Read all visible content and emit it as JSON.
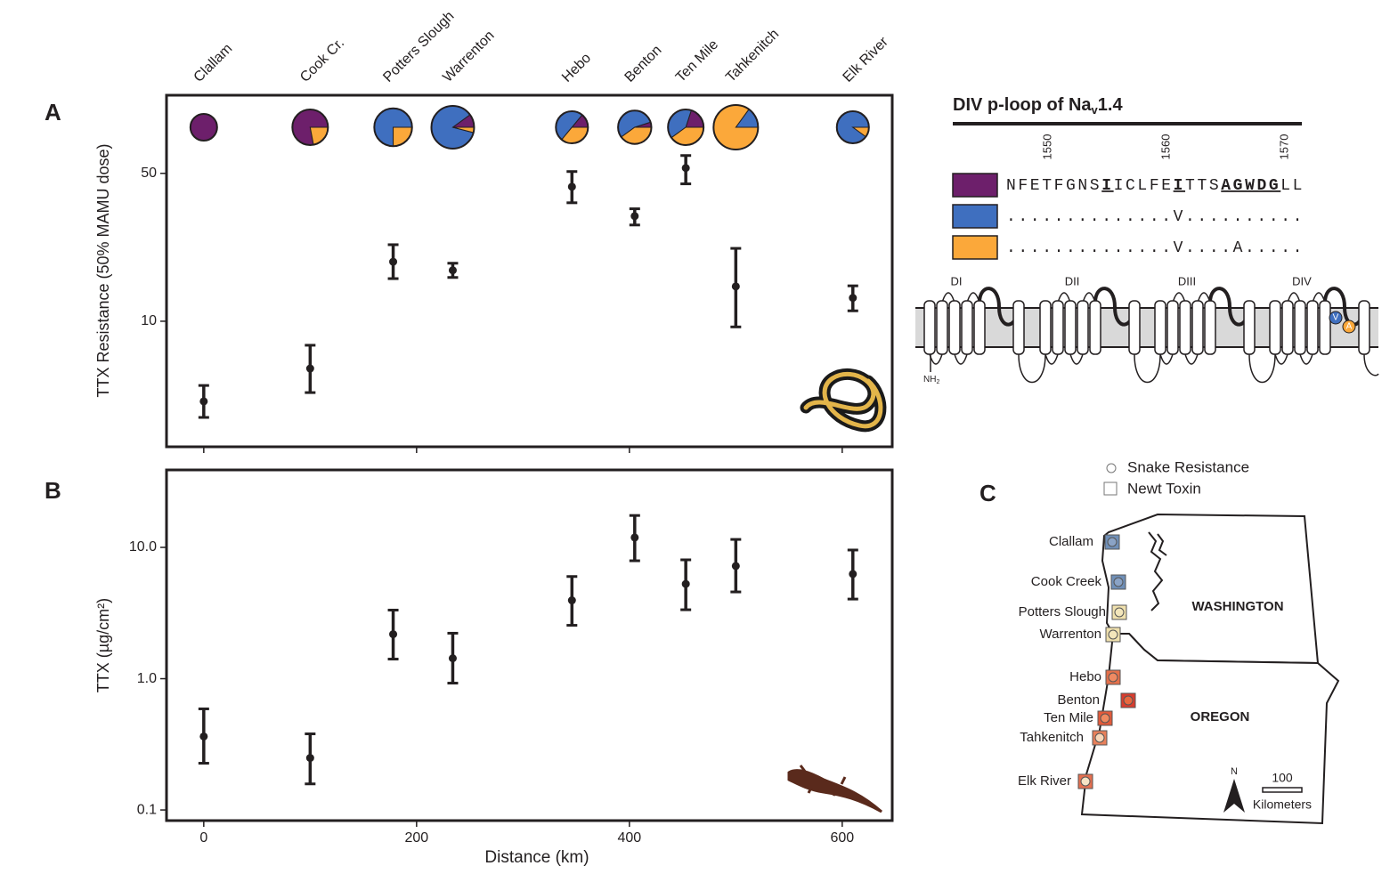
{
  "chart_data": [
    {
      "type": "errorbar",
      "panel": "A",
      "y_label": "TTX Resistance (50% MAMU dose)",
      "site_labels": [
        "Clallam",
        "Cook Cr.",
        "Potters Slough",
        "Warrenton",
        "Hebo",
        "Benton",
        "Ten Mile",
        "Tahkenitch",
        "Elk River"
      ],
      "x": [
        0,
        100,
        178,
        234,
        346,
        405,
        453,
        500,
        610
      ],
      "values": [
        4.18,
        5.98,
        19.1,
        17.4,
        43.2,
        31.4,
        53,
        14.6,
        12.9
      ],
      "lower": [
        3.51,
        4.6,
        15.9,
        16.1,
        36.3,
        28.5,
        44.6,
        9.4,
        11.2
      ],
      "upper": [
        4.97,
        7.7,
        23.0,
        18.8,
        51,
        34.0,
        60.7,
        22.1,
        14.7
      ],
      "xlim": [
        -35,
        647
      ],
      "ylim": [
        2.55,
        117
      ],
      "yticks": [
        10,
        50
      ],
      "log_y": true,
      "color": "#231f20",
      "pies": {
        "colors": [
          "#6d1f6b",
          "#3f6fbf",
          "#fba83a"
        ],
        "fractions": [
          [
            1,
            0,
            0
          ],
          [
            0.78,
            0,
            0.22
          ],
          [
            0,
            0.75,
            0.25
          ],
          [
            0.1,
            0.86,
            0.04
          ],
          [
            0.14,
            0.5,
            0.36
          ],
          [
            0.05,
            0.55,
            0.4
          ],
          [
            0.2,
            0.4,
            0.4
          ],
          [
            0,
            0.15,
            0.85
          ],
          [
            0,
            0.9,
            0.1
          ]
        ],
        "sizes": [
          9,
          16,
          18,
          23,
          13,
          14,
          16,
          25,
          13
        ]
      }
    },
    {
      "type": "errorbar",
      "panel": "B",
      "y_label": "TTX (µg/cm²)",
      "x_label": "Distance (km)",
      "x": [
        0,
        100,
        178,
        234,
        346,
        405,
        453,
        500,
        610
      ],
      "values": [
        0.363,
        0.249,
        2.18,
        1.43,
        3.95,
        11.9,
        5.27,
        7.21,
        6.27
      ],
      "lower": [
        0.227,
        0.158,
        1.41,
        0.925,
        2.55,
        7.91,
        3.35,
        4.58,
        4.04
      ],
      "upper": [
        0.589,
        0.38,
        3.33,
        2.22,
        6.0,
        17.5,
        8.04,
        11.5,
        9.55
      ],
      "xlim": [
        -35,
        647
      ],
      "ylim": [
        0.083,
        38.9
      ],
      "xticks": [
        0,
        200,
        400,
        600
      ],
      "yticks": [
        {
          "value": 10,
          "label": "10.0"
        },
        {
          "value": 1,
          "label": "1.0"
        },
        0.1
      ],
      "log_y": true,
      "color": "#231f20"
    }
  ],
  "sequence": {
    "title_parts": [
      "DIV p-loop of Na",
      "v",
      "1.4"
    ],
    "positions": [
      1550,
      1560,
      1570
    ],
    "rows": [
      {
        "color": "#6d1f6b",
        "segments": [
          {
            "text": "NFETFGNS"
          },
          {
            "text": "I",
            "bold": true
          },
          {
            "text": "ICLFE"
          },
          {
            "text": "I",
            "bold": true
          },
          {
            "text": "TTS"
          },
          {
            "text": "AGWDG",
            "bold": true
          },
          {
            "text": "LL"
          }
        ]
      },
      {
        "color": "#3f6fbf",
        "segments": [
          {
            "text": "..............V.........."
          }
        ]
      },
      {
        "color": "#fba83a",
        "segments": [
          {
            "text": "..............V....A....."
          }
        ]
      }
    ]
  },
  "channel": {
    "domains": [
      "DI",
      "DII",
      "DIII",
      "DIV"
    ],
    "terminus": [
      "NH",
      "2"
    ],
    "mutations": [
      {
        "label": "V",
        "color": "#3f6fbf"
      },
      {
        "label": "A",
        "color": "#fba83a"
      }
    ]
  },
  "map": {
    "panel": "C",
    "legend": [
      "Snake Resistance",
      "Newt Toxin"
    ],
    "states": [
      "WASHINGTON",
      "OREGON"
    ],
    "sites": [
      {
        "name": "Clallam",
        "square": "#6f8fb8",
        "circle": "#8aa3c6"
      },
      {
        "name": "Cook Creek",
        "square": "#6f8fb8",
        "circle": "#8aa3c6"
      },
      {
        "name": "Potters Slough",
        "square": "#efe0ad",
        "circle": "#f3e6bb"
      },
      {
        "name": "Warrenton",
        "square": "#efe0ad",
        "circle": "#f3e6bb"
      },
      {
        "name": "Hebo",
        "square": "#e5704a",
        "circle": "#ef8a62"
      },
      {
        "name": "Benton",
        "square": "#d83d2e",
        "circle": "#e8683f"
      },
      {
        "name": "Ten Mile",
        "square": "#e35a3a",
        "circle": "#f08a60"
      },
      {
        "name": "Tahkenitch",
        "square": "#e8805a",
        "circle": "#f7d6b8"
      },
      {
        "name": "Elk River",
        "square": "#e57050",
        "circle": "#f5e2c4"
      }
    ],
    "north": "N",
    "scale": "100",
    "scale_unit": "Kilometers"
  }
}
